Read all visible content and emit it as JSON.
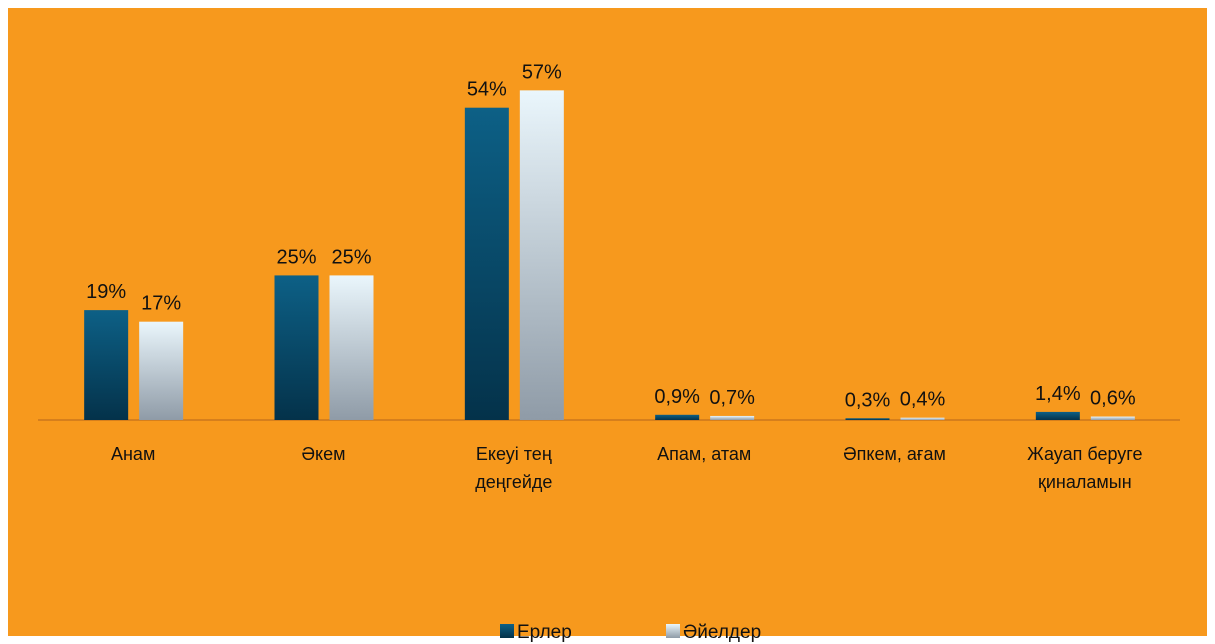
{
  "chart_data": {
    "type": "bar",
    "categories": [
      "Анам",
      "Әкем",
      "Екеуі тең деңгейде",
      "Апам, атам",
      "Әпкем, ағам",
      "Жауап беруге қиналамын"
    ],
    "series": [
      {
        "name": "Ерлер",
        "color": "#0d6086",
        "color_end": "#04324a",
        "values": [
          19,
          25,
          54,
          0.9,
          0.3,
          1.4
        ],
        "value_labels": [
          "19%",
          "25%",
          "54%",
          "0,9%",
          "0,3%",
          "1,4%"
        ]
      },
      {
        "name": "Әйелдер",
        "color": "#eaf6fc",
        "color_end": "#8f9ba7",
        "values": [
          17,
          25,
          57,
          0.7,
          0.4,
          0.6
        ],
        "value_labels": [
          "17%",
          "25%",
          "57%",
          "0,7%",
          "0,4%",
          "0,6%"
        ]
      }
    ],
    "ylim": [
      0,
      60
    ],
    "background": "#f7991d",
    "legend": "bottom"
  }
}
